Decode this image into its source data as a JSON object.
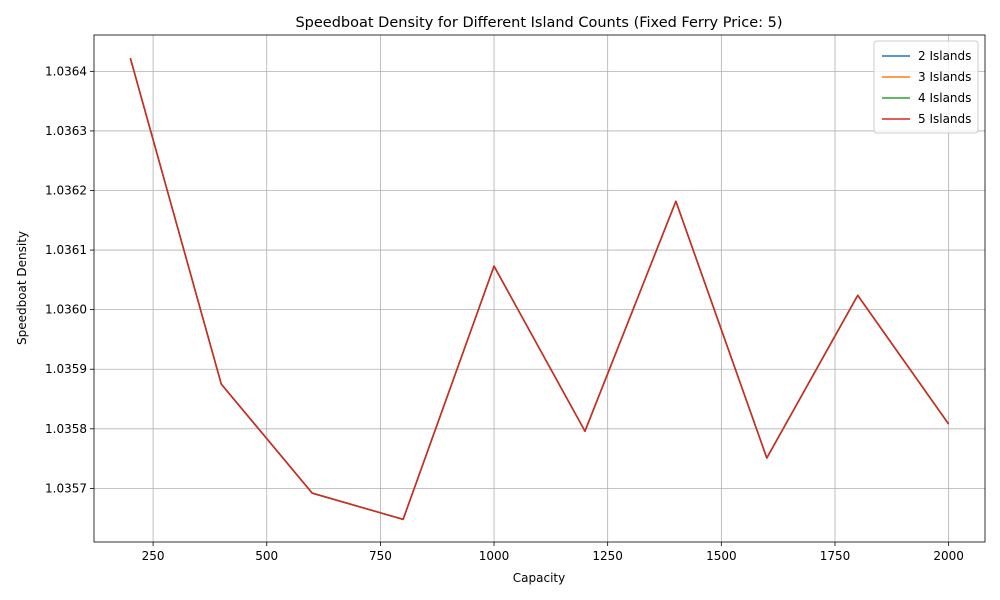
{
  "chart_data": {
    "type": "line",
    "title": "Speedboat Density for Different Island Counts (Fixed Ferry Price: 5)",
    "xlabel": "Capacity",
    "ylabel": "Speedboat Density",
    "x": [
      200,
      400,
      600,
      800,
      1000,
      1200,
      1400,
      1600,
      1800,
      2000
    ],
    "xlim": [
      120,
      2080
    ],
    "ylim": [
      1.03561,
      1.036461
    ],
    "xticks": [
      250,
      500,
      750,
      1000,
      1250,
      1500,
      1750,
      2000
    ],
    "xtick_labels": [
      "250",
      "500",
      "750",
      "1000",
      "1250",
      "1500",
      "1750",
      "2000"
    ],
    "yticks": [
      1.0357,
      1.0358,
      1.0359,
      1.036,
      1.0361,
      1.0362,
      1.0363,
      1.0364
    ],
    "ytick_labels": [
      "1.0357",
      "1.0358",
      "1.0359",
      "1.0360",
      "1.0361",
      "1.0362",
      "1.0363",
      "1.0364"
    ],
    "grid": true,
    "legend_position": "top-right",
    "series": [
      {
        "name": "2 Islands",
        "color": "#1f77b4",
        "values": [
          1.036422,
          1.035875,
          1.035692,
          1.035648,
          1.036073,
          1.035796,
          1.036182,
          1.035751,
          1.036024,
          1.035808
        ]
      },
      {
        "name": "3 Islands",
        "color": "#ff7f0e",
        "values": [
          1.036422,
          1.035875,
          1.035692,
          1.035648,
          1.036073,
          1.035796,
          1.036182,
          1.035751,
          1.036024,
          1.035808
        ]
      },
      {
        "name": "4 Islands",
        "color": "#2ca02c",
        "values": [
          1.036422,
          1.035875,
          1.035692,
          1.035648,
          1.036073,
          1.035796,
          1.036182,
          1.035751,
          1.036024,
          1.035808
        ]
      },
      {
        "name": "5 Islands",
        "color": "#d62728",
        "values": [
          1.036422,
          1.035875,
          1.035692,
          1.035648,
          1.036073,
          1.035796,
          1.036182,
          1.035751,
          1.036024,
          1.035808
        ]
      }
    ]
  }
}
